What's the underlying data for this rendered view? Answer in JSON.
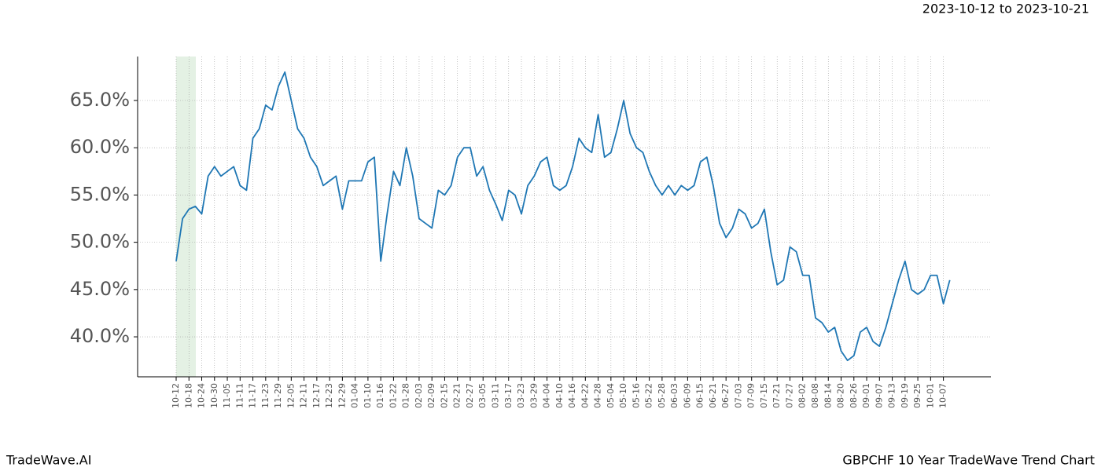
{
  "header": {
    "range": "2023-10-12 to 2023-10-21"
  },
  "footer": {
    "left": "TradeWave.AI",
    "right": "GBPCHF 10 Year TradeWave Trend Chart"
  },
  "chart_data": {
    "type": "line",
    "grid": true,
    "categories": [
      "10-12",
      null,
      "10-18",
      null,
      "10-24",
      null,
      "10-30",
      null,
      "11-05",
      null,
      "11-11",
      null,
      "11-17",
      null,
      "11-23",
      null,
      "11-29",
      null,
      "12-05",
      null,
      "12-11",
      null,
      "12-17",
      null,
      "12-23",
      null,
      "12-29",
      null,
      "01-04",
      null,
      "01-10",
      null,
      "01-16",
      null,
      "01-22",
      null,
      "01-28",
      null,
      "02-03",
      null,
      "02-09",
      null,
      "02-15",
      null,
      "02-21",
      null,
      "02-27",
      null,
      "03-05",
      null,
      "03-11",
      null,
      "03-17",
      null,
      "03-23",
      null,
      "03-29",
      null,
      "04-04",
      null,
      "04-10",
      null,
      "04-16",
      null,
      "04-22",
      null,
      "04-28",
      null,
      "05-04",
      null,
      "05-10",
      null,
      "05-16",
      null,
      "05-22",
      null,
      "05-28",
      null,
      "06-03",
      null,
      "06-09",
      null,
      "06-15",
      null,
      "06-21",
      null,
      "06-27",
      null,
      "07-03",
      null,
      "07-09",
      null,
      "07-15",
      null,
      "07-21",
      null,
      "07-27",
      null,
      "08-02",
      null,
      "08-08",
      null,
      "08-14",
      null,
      "08-20",
      null,
      "08-26",
      null,
      "09-01",
      null,
      "09-07",
      null,
      "09-13",
      null,
      "09-19",
      null,
      "09-25",
      null,
      "10-01",
      null,
      "10-07",
      null
    ],
    "series": [
      {
        "color": "#1f77b4",
        "values": [
          48,
          52.5,
          53.5,
          53.8,
          53,
          57,
          58,
          57,
          57.5,
          58,
          56,
          55.5,
          61,
          62,
          64.5,
          64,
          66.5,
          68,
          65,
          62,
          61,
          59,
          58,
          56,
          56.5,
          57,
          53.5,
          56.5,
          56.5,
          56.5,
          58.5,
          59,
          48,
          53,
          57.5,
          56,
          60,
          57,
          52.5,
          52,
          51.5,
          55.5,
          55,
          56,
          59,
          60,
          60,
          57,
          58,
          55.5,
          54,
          52.3,
          55.5,
          55,
          53,
          56,
          57,
          58.5,
          59,
          56,
          55.5,
          56,
          58,
          61,
          60,
          59.5,
          63.5,
          59,
          59.5,
          62,
          65,
          61.5,
          60,
          59.5,
          57.5,
          56,
          55,
          56,
          55,
          56,
          55.5,
          56,
          58.5,
          59,
          56,
          52,
          50.5,
          51.5,
          53.5,
          53,
          51.5,
          52,
          53.5,
          49,
          45.5,
          46,
          49.5,
          49,
          46.5,
          46.5,
          42,
          41.5,
          40.5,
          41,
          38.5,
          37.5,
          38,
          40.5,
          41,
          39.5,
          39,
          41,
          43.5,
          46,
          48,
          45,
          44.5,
          45,
          46.5,
          46.5,
          43.5,
          46
        ]
      }
    ],
    "ylim": [
      35.77,
      69.65
    ],
    "yticks": [
      {
        "value": 40,
        "label": "40.0%"
      },
      {
        "value": 45,
        "label": "45.0%"
      },
      {
        "value": 50,
        "label": "50.0%"
      },
      {
        "value": 55,
        "label": "55.0%"
      },
      {
        "value": 60,
        "label": "60.0%"
      },
      {
        "value": 65,
        "label": "65.0%"
      }
    ]
  }
}
